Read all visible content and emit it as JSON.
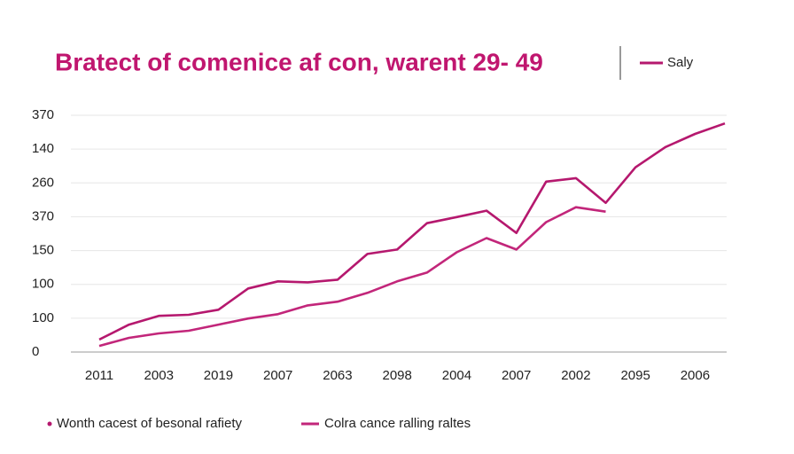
{
  "chart_data": {
    "type": "line",
    "title": "Bratect of comenice af con, warent 29- 49",
    "legend_note": "Saly",
    "categories": [
      "2011",
      null,
      "2003",
      null,
      "2019",
      null,
      "2007",
      null,
      "2063",
      null,
      "2098",
      null,
      "2004",
      null,
      "2007",
      null,
      "2002",
      null,
      "2095",
      null,
      "2006",
      null
    ],
    "series": [
      {
        "name": "Wonth cacest of besonal rafiety",
        "color": "#b5186e",
        "values": [
          0.37,
          0.81,
          1.07,
          1.1,
          1.25,
          1.88,
          2.09,
          2.06,
          2.14,
          2.9,
          3.03,
          3.81,
          3.99,
          4.18,
          3.52,
          5.04,
          5.14,
          4.41,
          5.46,
          6.06,
          6.45,
          6.76
        ]
      },
      {
        "name": "Colra cance ralling raltes",
        "color": "#c2267a",
        "values": [
          0.18,
          0.42,
          0.55,
          0.63,
          0.81,
          0.99,
          1.12,
          1.38,
          1.49,
          1.75,
          2.09,
          2.35,
          2.95,
          3.37,
          3.03,
          3.84,
          4.28,
          4.15,
          null,
          null,
          null,
          null
        ]
      }
    ],
    "ylim": [
      0,
      7
    ],
    "yticks": [
      0,
      {
        "value": 1,
        "label": "100"
      },
      {
        "value": 2,
        "label": "100"
      },
      {
        "value": 3,
        "label": "150"
      },
      {
        "value": 4,
        "label": "370"
      },
      {
        "value": 5,
        "label": "260"
      },
      {
        "value": 6,
        "label": "140"
      },
      {
        "value": 7,
        "label": "370"
      }
    ],
    "grid": true
  }
}
